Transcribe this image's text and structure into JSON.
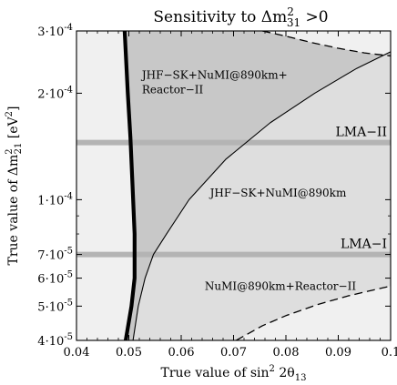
{
  "chart_data": {
    "type": "area",
    "title": "Sensitivity to Δm²₃₁ >0",
    "title_parts": [
      "Sensitivity to Δm",
      "2",
      "31",
      " >0"
    ],
    "xlabel": "True value of sin² 2θ₁₃",
    "xlabel_parts": [
      "True value of sin",
      "2",
      " 2θ",
      "13"
    ],
    "ylabel": "True value of Δm²₂₁ [eV²]",
    "ylabel_parts": [
      "True value of Δm",
      "2",
      "21",
      " [eV",
      "2",
      "]"
    ],
    "xlim": [
      0.04,
      0.1
    ],
    "ylim": [
      4e-05,
      0.0003
    ],
    "yscale": "log",
    "x_ticks": [
      0.04,
      0.05,
      0.06,
      0.07,
      0.08,
      0.09,
      0.1
    ],
    "x_tick_labels": [
      "0.04",
      "0.05",
      "0.06",
      "0.07",
      "0.08",
      "0.09",
      "0.1"
    ],
    "y_ticks": [
      {
        "value": 4e-05,
        "mantissa": "4",
        "exponent": "-5"
      },
      {
        "value": 5e-05,
        "mantissa": "5",
        "exponent": "-5"
      },
      {
        "value": 6e-05,
        "mantissa": "6",
        "exponent": "-5"
      },
      {
        "value": 7e-05,
        "mantissa": "7",
        "exponent": "-5"
      },
      {
        "value": 0.0001,
        "mantissa": "1",
        "exponent": "-4"
      },
      {
        "value": 0.0002,
        "mantissa": "2",
        "exponent": "-4"
      },
      {
        "value": 0.0003,
        "mantissa": "3",
        "exponent": "-4"
      }
    ],
    "y_minor_ticks": [
      8e-05,
      9e-05
    ],
    "y_tick_separator": "·",
    "y_tick_base": "10",
    "series": [
      {
        "name": "JHF−SK+NuMI@890km+Reactor−II",
        "style": "thick-solid",
        "color": "#000000",
        "points": [
          [
            0.0492,
            0.0003
          ],
          [
            0.0498,
            0.0002
          ],
          [
            0.0503,
            0.00015
          ],
          [
            0.0507,
            0.00011
          ],
          [
            0.0511,
            8e-05
          ],
          [
            0.0511,
            6e-05
          ],
          [
            0.0505,
            5e-05
          ],
          [
            0.0494,
            4e-05
          ]
        ]
      },
      {
        "name": "JHF−SK+NuMI@890km",
        "style": "thin-solid",
        "color": "#000000",
        "points": [
          [
            0.0508,
            4e-05
          ],
          [
            0.0518,
            5e-05
          ],
          [
            0.0531,
            6e-05
          ],
          [
            0.0547,
            7e-05
          ],
          [
            0.0572,
            8e-05
          ],
          [
            0.0615,
            0.0001
          ],
          [
            0.0685,
            0.00013
          ],
          [
            0.077,
            0.000165
          ],
          [
            0.0855,
            0.0002
          ],
          [
            0.0935,
            0.000235
          ],
          [
            0.1,
            0.000262
          ]
        ]
      },
      {
        "name": "NuMI@890km+Reactor−II",
        "style": "dashed",
        "color": "#000000",
        "points": [
          [
            0.0705,
            4e-05
          ],
          [
            0.0755,
            4.4e-05
          ],
          [
            0.08,
            4.7e-05
          ],
          [
            0.086,
            5.05e-05
          ],
          [
            0.092,
            5.35e-05
          ],
          [
            0.1,
            5.7e-05
          ]
        ]
      },
      {
        "name": "upper dashed boundary",
        "style": "dashed",
        "color": "#000000",
        "points": [
          [
            0.0755,
            0.0003
          ],
          [
            0.08,
            0.00029
          ],
          [
            0.085,
            0.000278
          ],
          [
            0.09,
            0.000268
          ],
          [
            0.095,
            0.00026
          ],
          [
            0.1,
            0.000255
          ]
        ]
      }
    ],
    "horizontal_bands": [
      {
        "label": "LMA−II",
        "y": 0.000145,
        "color": "#b4b4b4"
      },
      {
        "label": "LMA−I",
        "y": 7e-05,
        "color": "#b4b4b4"
      }
    ],
    "region_labels": [
      {
        "text_lines": [
          "JHF−SK+NuMI@890km+",
          "Reactor−II"
        ],
        "x": 0.0525,
        "y": 0.00022
      },
      {
        "text_lines": [
          "JHF−SK+NuMI@890km"
        ],
        "x": 0.0655,
        "y": 0.000102
      },
      {
        "text_lines": [
          "NuMI@890km+Reactor−II"
        ],
        "x": 0.0645,
        "y": 5.55e-05
      }
    ],
    "fill_colors": {
      "background": "#f0f0f0",
      "light": "#dedede",
      "dark": "#c8c8c8"
    },
    "grid": false
  }
}
